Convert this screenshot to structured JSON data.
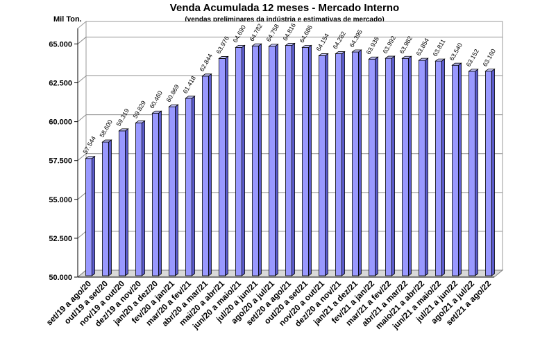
{
  "chart_data": {
    "type": "bar",
    "title": "Venda Acumulada 12 meses -  Mercado Interno",
    "subtitle": "(vendas preliminares da indústria e estimativas de mercado)",
    "ylabel": "Mil Ton.",
    "ylim": [
      50000,
      66000
    ],
    "yticks": [
      "50.000",
      "52.500",
      "55.000",
      "57.500",
      "60.000",
      "62.500",
      "65.000"
    ],
    "ytick_values": [
      50000,
      52500,
      55000,
      57500,
      60000,
      62500,
      65000
    ],
    "grid": true,
    "legend": "none",
    "bar_color": "#9999ff",
    "categories": [
      "set/19 a ago/20",
      "out/19 a set/20",
      "nov/19 a out/20",
      "dez/19 a nov/20",
      "jan/20 a dez/20",
      "fev/20 a jan/21",
      "mar/20 a fev/21",
      "abr/20 a mar/21",
      "mai/20 a abr/21",
      "jun/20 a maio/21",
      "jul/20 a jun/21",
      "ago/20 a jul/21",
      "set/20 a ago/21",
      "out/20 a set/21",
      "nov/20 a out/21",
      "dez/20 a nov/21",
      "jan/21 a dez/21",
      "fev/21 a jan/22",
      "mar/21 a fev/22",
      "abr/21 a mar/22",
      "maio/21 a abr/22",
      "jun/21 a maio/22",
      "jul/21 a jun/22",
      "ago/21 a jul/22",
      "set/21 a ago/22"
    ],
    "values": [
      57544,
      58600,
      59319,
      59829,
      60460,
      60869,
      61418,
      62844,
      63976,
      64690,
      64782,
      64758,
      64816,
      64686,
      64154,
      64282,
      64395,
      63936,
      63992,
      63982,
      63854,
      63811,
      63540,
      63152,
      63160
    ],
    "value_labels": [
      "57.544",
      "58.600",
      "59.319",
      "59.829",
      "60.460",
      "60.869",
      "61.418",
      "62.844",
      "63.976",
      "64.690",
      "64.782",
      "64.758",
      "64.816",
      "64.686",
      "64.154",
      "64.282",
      "64.395",
      "63.936",
      "63.992",
      "63.982",
      "63.854",
      "63.811",
      "63.540",
      "63.152",
      "63.160"
    ]
  }
}
